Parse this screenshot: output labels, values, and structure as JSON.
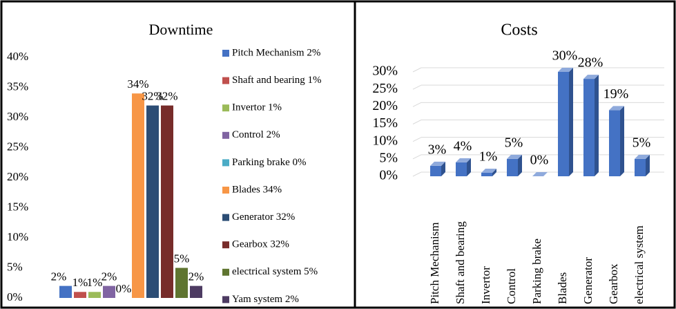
{
  "chart_data": [
    {
      "type": "bar",
      "title": "Downtime",
      "grid": false,
      "legend": "right",
      "ylim": [
        0,
        40
      ],
      "yticks": [
        {
          "value": 0,
          "label": "0%"
        },
        {
          "value": 5,
          "label": "5%"
        },
        {
          "value": 10,
          "label": "10%"
        },
        {
          "value": 15,
          "label": "15%"
        },
        {
          "value": 20,
          "label": "20%"
        },
        {
          "value": 25,
          "label": "25%"
        },
        {
          "value": 30,
          "label": "30%"
        },
        {
          "value": 35,
          "label": "35%"
        },
        {
          "value": 40,
          "label": "40%"
        }
      ],
      "series": [
        {
          "name": "Pitch Mechanism 2%",
          "color": "#4472c4",
          "values": [
            2
          ],
          "value_labels": [
            "2%"
          ]
        },
        {
          "name": "Shaft and bearing 1%",
          "color": "#c0504d",
          "values": [
            1
          ],
          "value_labels": [
            "1%"
          ]
        },
        {
          "name": "Invertor 1%",
          "color": "#9bbb59",
          "values": [
            1
          ],
          "value_labels": [
            "1%"
          ]
        },
        {
          "name": "Control 2%",
          "color": "#8064a2",
          "values": [
            2
          ],
          "value_labels": [
            "2%"
          ]
        },
        {
          "name": "Parking brake 0%",
          "color": "#4bacc6",
          "values": [
            0
          ],
          "value_labels": [
            "0%"
          ]
        },
        {
          "name": "Blades 34%",
          "color": "#f79646",
          "values": [
            34
          ],
          "value_labels": [
            "34%"
          ]
        },
        {
          "name": "Generator 32%",
          "color": "#2c4d75",
          "values": [
            32
          ],
          "value_labels": [
            "32%"
          ]
        },
        {
          "name": "Gearbox 32%",
          "color": "#772c2a",
          "values": [
            32
          ],
          "value_labels": [
            "32%"
          ]
        },
        {
          "name": "electrical system 5%",
          "color": "#5f7530",
          "values": [
            5
          ],
          "value_labels": [
            "5%"
          ]
        },
        {
          "name": "Yam system 2%",
          "color": "#4d3b62",
          "values": [
            2
          ],
          "value_labels": [
            "2%"
          ]
        }
      ]
    },
    {
      "type": "bar",
      "title": "Costs",
      "grid": true,
      "style3d": true,
      "color": "#4472c4",
      "ylim": [
        0,
        30
      ],
      "yticks": [
        {
          "value": 0,
          "label": "0%"
        },
        {
          "value": 5,
          "label": "5%"
        },
        {
          "value": 10,
          "label": "10%"
        },
        {
          "value": 15,
          "label": "15%"
        },
        {
          "value": 20,
          "label": "20%"
        },
        {
          "value": 25,
          "label": "25%"
        },
        {
          "value": 30,
          "label": "30%"
        }
      ],
      "categories": [
        "Pitch Mechanism",
        "Shaft and bearing",
        "Invertor",
        "Control",
        "Parking brake",
        "Blades",
        "Generator",
        "Gearbox",
        "electrical system"
      ],
      "values": [
        3,
        4,
        1,
        5,
        0,
        30,
        28,
        19,
        5
      ],
      "value_labels": [
        "3%",
        "4%",
        "1%",
        "5%",
        "0%",
        "30%",
        "28%",
        "19%",
        "5%"
      ]
    }
  ]
}
